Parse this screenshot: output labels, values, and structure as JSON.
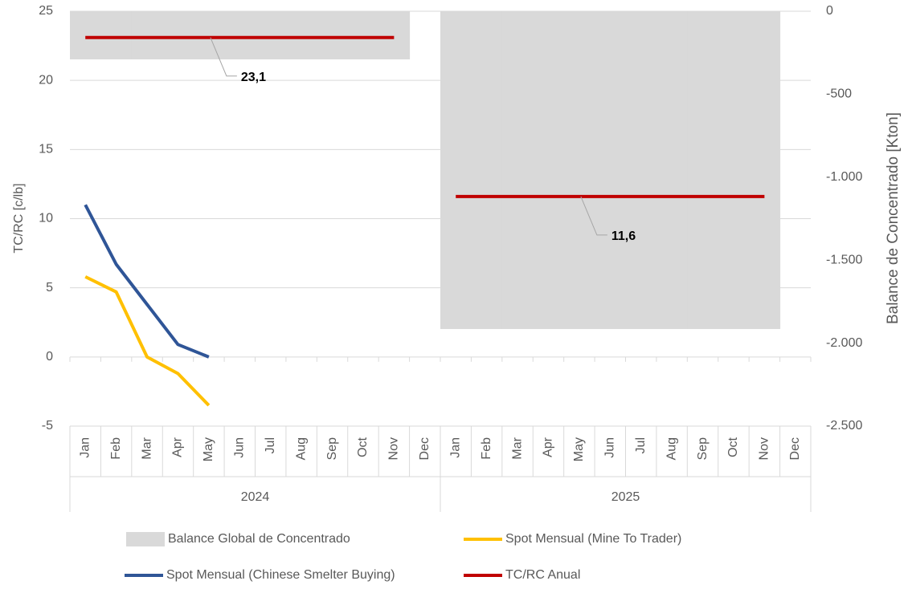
{
  "chart_data": {
    "type": "combo",
    "y_label": "TC/RC [c/lb]",
    "y2_label": "Balance de Concentrado [Kton]",
    "categories": [
      "Jan",
      "Feb",
      "Mar",
      "Apr",
      "May",
      "Jun",
      "Jul",
      "Aug",
      "Sep",
      "Oct",
      "Nov",
      "Dec",
      "Jan",
      "Feb",
      "Mar",
      "Apr",
      "May",
      "Jun",
      "Jul",
      "Aug",
      "Sep",
      "Oct",
      "Nov",
      "Dec"
    ],
    "category_groups": [
      "2024",
      "2025"
    ],
    "ylim": [
      -5,
      25
    ],
    "yticks": [
      -5,
      0,
      5,
      10,
      15,
      20,
      25
    ],
    "y2lim": [
      -2500,
      0
    ],
    "y2ticks": [
      {
        "value": -2500,
        "label": "-2.500"
      },
      {
        "value": -2000,
        "label": "-2.000"
      },
      {
        "value": -1500,
        "label": "-1.500"
      },
      {
        "value": -1000,
        "label": "-1.000"
      },
      -500,
      0
    ],
    "grid": true,
    "legend": "bottom",
    "series": [
      {
        "name": "Balance Global de Concentrado",
        "type": "bar",
        "axis": "y2",
        "color": "#d9d9d9",
        "values": [
          -290,
          -290,
          -290,
          -290,
          -290,
          -290,
          -290,
          -290,
          -290,
          -290,
          -290,
          null,
          -1915,
          -1915,
          -1915,
          -1915,
          -1915,
          -1915,
          -1915,
          -1915,
          -1915,
          -1915,
          -1915,
          null
        ]
      },
      {
        "name": "Spot Mensual (Mine To Trader)",
        "type": "line",
        "color": "#ffc000",
        "values": [
          5.8,
          4.7,
          0,
          -1.2,
          -3.5,
          null,
          null,
          null,
          null,
          null,
          null,
          null,
          null,
          null,
          null,
          null,
          null,
          null,
          null,
          null,
          null,
          null,
          null,
          null
        ]
      },
      {
        "name": "Spot Mensual (Chinese Smelter Buying)",
        "type": "line",
        "color": "#2f5597",
        "values": [
          11.0,
          6.7,
          3.8,
          0.9,
          0.0,
          null,
          null,
          null,
          null,
          null,
          null,
          null,
          null,
          null,
          null,
          null,
          null,
          null,
          null,
          null,
          null,
          null,
          null,
          null
        ]
      },
      {
        "name": "TC/RC Anual",
        "type": "line",
        "color": "#c00000",
        "values": [
          23.1,
          23.1,
          23.1,
          23.1,
          23.1,
          23.1,
          23.1,
          23.1,
          23.1,
          23.1,
          23.1,
          null,
          11.6,
          11.6,
          11.6,
          11.6,
          11.6,
          11.6,
          11.6,
          11.6,
          11.6,
          11.6,
          11.6,
          null
        ],
        "value_labels": [
          null,
          null,
          null,
          null,
          "23,1",
          null,
          null,
          null,
          null,
          null,
          null,
          null,
          null,
          null,
          null,
          null,
          "11,6",
          null,
          null,
          null,
          null,
          null,
          null,
          null
        ]
      }
    ]
  }
}
